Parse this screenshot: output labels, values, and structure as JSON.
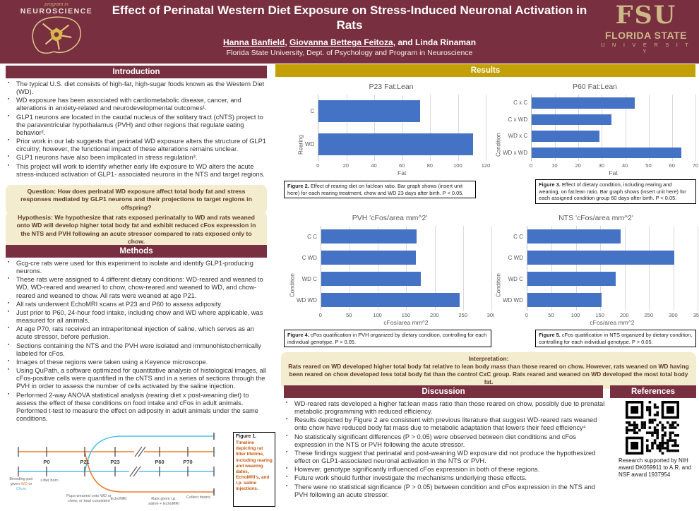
{
  "header": {
    "title": "Effect of Perinatal Western Diet Exposure on Stress-Induced Neuronal Activation in Rats",
    "authors": {
      "a1": "Hanna Banfield",
      "sep1": ", ",
      "a2": "Giovanna Bettega Feitoza",
      "sep2": ", and ",
      "a3": "Linda Rinaman"
    },
    "affiliation": "Florida State University, Dept. of Psychology and Program in Neuroscience",
    "left_logo": {
      "small": "program in",
      "big": "Neuroscience"
    },
    "right_logo": {
      "fsu": "FSU",
      "line1": "FLORIDA STATE",
      "line2": "U N I V E R S I T Y"
    }
  },
  "colors": {
    "maroon": "#782F40",
    "gold": "#C3A006",
    "cream_box": "#F3ECCF",
    "bar_blue": "#4472C4",
    "timeline_orange": "#ED7D31",
    "timeline_blue": "#4FC0E8",
    "fsu_gold": "#CEB888"
  },
  "intro": {
    "title": "Introduction",
    "bullets": [
      "The typical U.S. diet consists of high-fat, high-sugar foods known as the Western Diet (WD).",
      "WD exposure has been associated with cardiometabolic disease, cancer, and alterations in anxiety-related and neurodevelopmental outcomes¹.",
      "GLP1 neurons are located in the caudal nucleus of the solitary tract (cNTS) project to the paraventricular hypothalamus (PVH) and other regions that regulate eating behavior².",
      "Prior work in our lab suggests that perinatal WD exposure alters the structure of GLP1 circuitry; however, the functional impact of these alterations remains unclear.",
      "GLP1 neurons have also been implicated in stress regulation³.",
      "This project will work to identify whether early life exposure to WD alters the acute stress-induced activation of GLP1- associated neurons in the NTS and target regions."
    ]
  },
  "question": "Question: How does perinatal WD exposure affect total body fat and stress responses mediated by GLP1 neurons and their projections to target regions in offspring?",
  "hypothesis": "Hypothesis: We hypothesize that rats exposed perinatally to WD and rats weaned onto WD will develop higher total body fat and exhibit reduced cFos expression in the NTS and PVH following an acute stressor compared to rats exposed only to chow.",
  "methods": {
    "title": "Methods",
    "bullets": [
      "Gcg-cre rats were used for this experiment to isolate and identify GLP1-producing neurons.",
      "These rats were assigned to 4 different dietary conditions: WD-reared and weaned to WD, WD-reared and weaned to chow, chow-reared and weaned to WD, and chow-reared and weaned to chow. All rats were weaned at age P21.",
      "All rats underwent EchoMRI scans at P23 and P60 to assess adiposity",
      "Just prior to P60, 24-hour food intake, including chow and WD where applicable, was measured for all animals.",
      "At age P70, rats received an intraperitoneal injection of saline, which serves as an acute stressor, before perfusion.",
      "Sections containing the NTS and the PVH were isolated and immunohistochemically labeled for cFos.",
      "Images of these regions were taken using a Keyence microscope.",
      "Using QuPath, a software optimized for quantitative analysis of histological images, all cFos-positive cells were quantified in the cNTS and in a series of sections through the PVH in order to assess the number of cells activated by the saline injection.",
      "Performed 2-way ANOVA statistical analysis (rearing diet x post-weaning diet) to assess the effect of these conditions on food intake and cFos in adult animals. Performed t-test to measure the effect on adiposity in adult animals under the same conditions."
    ]
  },
  "figure1": {
    "label": "Figure 1.",
    "text": "Timeline depicting rat litter lifetime, including rearing and weaning dates, EchoMRI's, and i.p. saline injections."
  },
  "timeline": {
    "points": [
      "P0",
      "P21",
      "P23",
      "P60",
      "P70"
    ],
    "breeding": {
      "pre": "Breeding pair given ",
      "wd": "WD",
      "or": " or ",
      "chow": "Chow"
    },
    "labels": {
      "litter": "Litter born",
      "pups": "Pups weaned onto WD or chow, or kept consistent",
      "echo": "EchoMRI",
      "saline": "Rats given i.p. saline + EchoMRI",
      "collect": "Collect brains"
    }
  },
  "results": {
    "title": "Results"
  },
  "chart_data": [
    {
      "type": "bar",
      "orientation": "horizontal",
      "title": "P23 Fat:Lean",
      "categories": [
        "C",
        "WD"
      ],
      "values": [
        73,
        111
      ],
      "xlabel": "Fat",
      "ylabel": "Rearing",
      "xlim": [
        0,
        120
      ],
      "xticks": [
        0,
        20,
        40,
        60,
        80,
        100,
        120
      ],
      "bar_color": "#4472C4",
      "grid": true,
      "legend": "none"
    },
    {
      "type": "bar",
      "orientation": "horizontal",
      "title": "P60 Fat:Lean",
      "categories": [
        "C x C",
        "C x WD",
        "WD x C",
        "WD x WD"
      ],
      "values": [
        44,
        34,
        29,
        64
      ],
      "xlabel": "Fat",
      "ylabel": "Condition",
      "xlim": [
        0,
        70
      ],
      "xticks": [
        0,
        10,
        20,
        30,
        40,
        50,
        60,
        70
      ],
      "bar_color": "#4472C4",
      "grid": true,
      "legend": "none"
    },
    {
      "type": "bar",
      "orientation": "horizontal",
      "title": "PVH 'cFos/area mm^2'",
      "categories": [
        "C C",
        "C WD",
        "WD C",
        "WD WD"
      ],
      "values": [
        168,
        167,
        176,
        244
      ],
      "xlabel": "cFos/area mm^2",
      "ylabel": "Condition",
      "xlim": [
        0,
        300
      ],
      "xticks": [
        0,
        50,
        100,
        150,
        200,
        250,
        300
      ],
      "bar_color": "#4472C4",
      "grid": true,
      "legend": "none"
    },
    {
      "type": "bar",
      "orientation": "horizontal",
      "title": "NTS 'cFos/area mm^2'",
      "categories": [
        "C C",
        "C WD",
        "WD C",
        "WD WD"
      ],
      "values": [
        192,
        302,
        181,
        152
      ],
      "xlabel": "cFos/area mm^2",
      "ylabel": "Condition",
      "xlim": [
        0,
        350
      ],
      "xticks": [
        0,
        50,
        100,
        150,
        200,
        250,
        300,
        350
      ],
      "bar_color": "#4472C4",
      "grid": true,
      "legend": "none"
    }
  ],
  "figures": {
    "fig2": {
      "label": "Figure 2.",
      "text": " Effect of rearing diet on fat:lean ratio. Bar graph shows (insert unit here) for each rearing treatment, chow and WD 23 days after birth. P < 0.05."
    },
    "fig3": {
      "label": "Figure 3.",
      "text": " Effect of dietary condition, including rearing and weaning, on fat:lean ratio. Bar graph shows (insert unit here) for each assigned condition group 60 days after birth. P < 0.05."
    },
    "fig4": {
      "label": "Figure 4.",
      "text": " cFos quatification in PVH organized by dietary condition, controlling for each individual genotype. P > 0.05."
    },
    "fig5": {
      "label": "Figure 5.",
      "text": " cFos quatification in NTS organized by dietary condition, controlling for each individual genotype. P > 0.05."
    }
  },
  "interpretation": {
    "label": "Interpretation:",
    "text": "Rats reared on WD developed higher total body fat relative to lean body mass than those reared on chow. However, rats weaned on WD having been reared on chow developed less total body fat than the control CxC group. Rats reared and weaned on WD developed the most total body fat."
  },
  "discussion": {
    "title": "Discussion",
    "bullets": [
      "WD-reared rats developed a higher fat:lean mass ratio than those reared on chow, possibly due to prenatal metabolic programming with reduced efficiency.",
      "Results depicted by Figure 2 are consistent with previous literature that suggest WD-reared rats weaned onto chow have reduced body fat mass due to metabolic adaptation that lowers their feed efficiency⁴",
      "No statistically significant differences (P > 0.05) were observed between diet conditions and cFos expression in the NTS or PVH following the acute stressor.",
      "These findings suggest that perinatal and post-weaning WD exposure did not produce the hypothesized effect on GLP1-associated neuronal activation in the NTS or PVH.",
      "However, genotype significantly influenced cFos expression in both of these regions.",
      "Future work should further investigate the mechanisms underlying these effects.",
      "There were no statistical significance (P > 0.05) between condition and cFos expression in the NTS and PVH following an acute stressor."
    ]
  },
  "references": {
    "title": "References",
    "support": "Research supported by NIH award DK059911 to A.R. and NSF award 1937954"
  }
}
